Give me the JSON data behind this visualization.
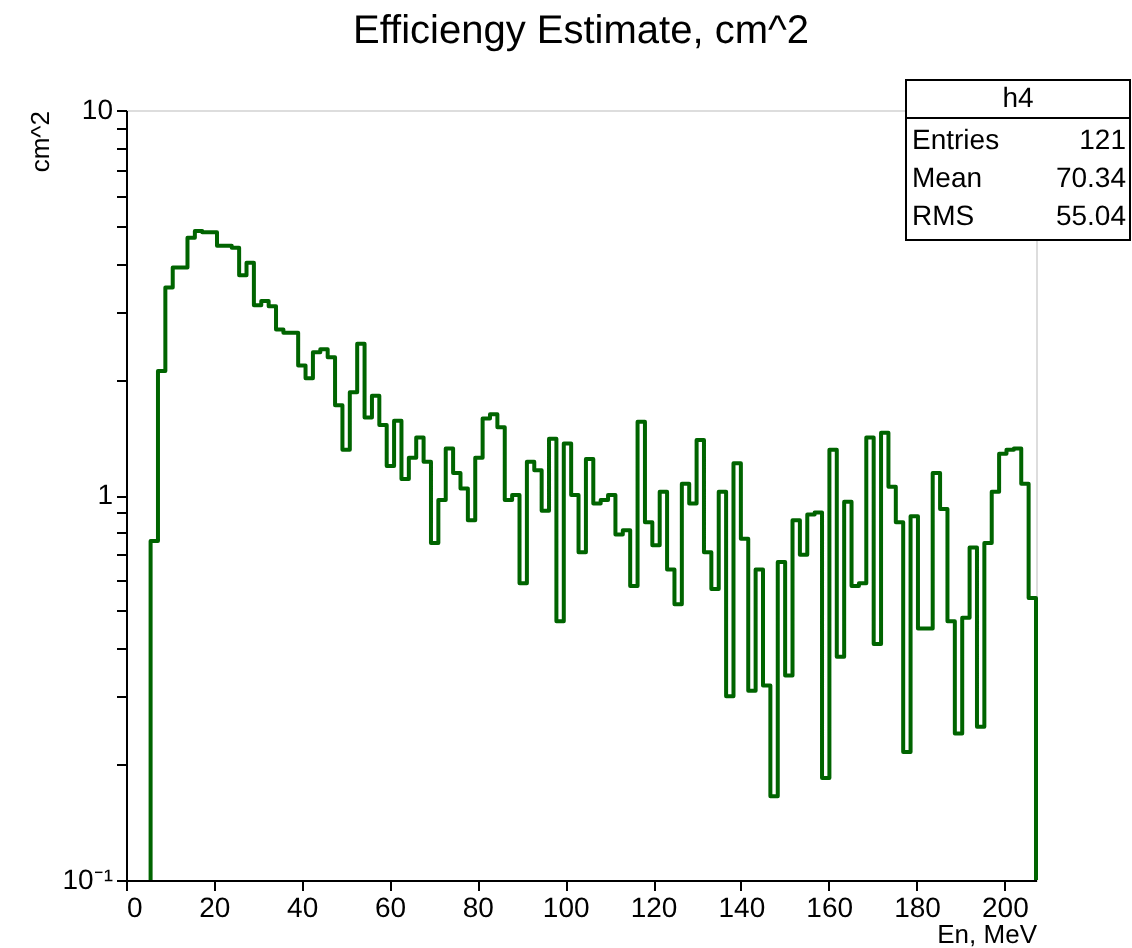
{
  "chart_data": {
    "type": "histogram",
    "title": "Efficiengy Estimate, cm^2",
    "xlabel": "En, MeV",
    "ylabel": "cm^2",
    "log": "y",
    "grid": false,
    "annotations": [
      "h4",
      "Entries",
      "121",
      "Mean",
      "70.34",
      "RMS",
      "55.04"
    ],
    "xlim": [
      0,
      207.2
    ],
    "xticks": [
      0,
      20,
      40,
      60,
      80,
      100,
      120,
      140,
      160,
      180,
      200
    ],
    "ylim": [
      0.1,
      10
    ],
    "yticks": [
      {
        "value": 0.1,
        "label": "10⁻¹"
      },
      {
        "value": 0.2,
        "label": null
      },
      {
        "value": 0.3,
        "label": null
      },
      {
        "value": 0.4,
        "label": null
      },
      {
        "value": 0.5,
        "label": null
      },
      {
        "value": 0.6,
        "label": null
      },
      {
        "value": 0.7,
        "label": null
      },
      {
        "value": 0.8,
        "label": null
      },
      {
        "value": 0.9,
        "label": null
      },
      1,
      {
        "value": 2,
        "label": null
      },
      {
        "value": 3,
        "label": null
      },
      {
        "value": 4,
        "label": null
      },
      {
        "value": 5,
        "label": null
      },
      {
        "value": 6,
        "label": null
      },
      {
        "value": 7,
        "label": null
      },
      {
        "value": 8,
        "label": null
      },
      {
        "value": 9,
        "label": null
      },
      10
    ],
    "color": "#006400",
    "bins": [
      5.6,
      7.28,
      8.96,
      10.64,
      12.32,
      14.0,
      15.68,
      17.36,
      19.04,
      20.72,
      22.4,
      24.08,
      25.76,
      27.44,
      29.12,
      30.8,
      32.48,
      34.16,
      35.84,
      37.52,
      39.2,
      40.88,
      42.56,
      44.24,
      45.92,
      47.6,
      49.28,
      50.96,
      52.64,
      54.32,
      56.0,
      57.68,
      59.36,
      61.04,
      62.72,
      64.4,
      66.08,
      67.76,
      69.44,
      71.12,
      72.8,
      74.48,
      76.16,
      77.84,
      79.52,
      81.2,
      82.88,
      84.56,
      86.24,
      87.92,
      89.6,
      91.28,
      92.96,
      94.64,
      96.32,
      98.0,
      99.68,
      101.36,
      103.04,
      104.72,
      106.4,
      108.08,
      109.76,
      111.44,
      113.12,
      114.8,
      116.48,
      118.16,
      119.84,
      121.52,
      123.2,
      124.88,
      126.56,
      128.24,
      129.92,
      131.6,
      133.28,
      134.96,
      136.64,
      138.32,
      140.0,
      141.68,
      143.36,
      145.04,
      146.72,
      148.4,
      150.08,
      151.76,
      153.44,
      155.12,
      156.8,
      158.48,
      160.16,
      161.84,
      163.52,
      165.2,
      166.88,
      168.56,
      170.24,
      171.92,
      173.6,
      175.28,
      176.96,
      178.64,
      180.32,
      182.0,
      183.68,
      185.36,
      187.04,
      188.72,
      190.4,
      192.08,
      193.76,
      195.44,
      197.12,
      198.8,
      200.48,
      202.16,
      203.84,
      205.52,
      207.2
    ],
    "values": [
      0.76,
      2.1,
      3.46,
      3.9,
      3.9,
      4.66,
      4.85,
      4.81,
      4.81,
      4.44,
      4.44,
      4.39,
      3.72,
      4.01,
      3.11,
      3.19,
      3.09,
      2.69,
      2.64,
      2.64,
      2.17,
      2.01,
      2.35,
      2.39,
      2.28,
      1.71,
      1.31,
      1.85,
      2.47,
      1.59,
      1.81,
      1.52,
      1.19,
      1.56,
      1.1,
      1.25,
      1.41,
      1.22,
      0.75,
      0.97,
      1.32,
      1.14,
      1.04,
      0.86,
      1.25,
      1.58,
      1.62,
      1.5,
      0.97,
      1.0,
      0.59,
      1.22,
      1.16,
      0.91,
      1.4,
      0.47,
      1.36,
      1.0,
      0.71,
      1.24,
      0.95,
      0.97,
      1.0,
      0.79,
      0.81,
      0.58,
      1.55,
      0.85,
      0.74,
      1.02,
      0.64,
      0.52,
      1.07,
      0.95,
      1.39,
      0.71,
      0.57,
      1.02,
      0.3,
      1.21,
      0.77,
      0.31,
      0.64,
      0.32,
      0.165,
      0.67,
      0.34,
      0.86,
      0.7,
      0.89,
      0.9,
      0.184,
      1.31,
      0.38,
      0.96,
      0.58,
      0.59,
      1.41,
      0.41,
      1.45,
      1.05,
      0.85,
      0.215,
      0.88,
      0.45,
      0.45,
      1.14,
      0.92,
      0.47,
      0.24,
      0.48,
      0.73,
      0.25,
      0.75,
      1.02,
      1.28,
      1.31,
      1.32,
      1.07,
      0.54
    ]
  }
}
